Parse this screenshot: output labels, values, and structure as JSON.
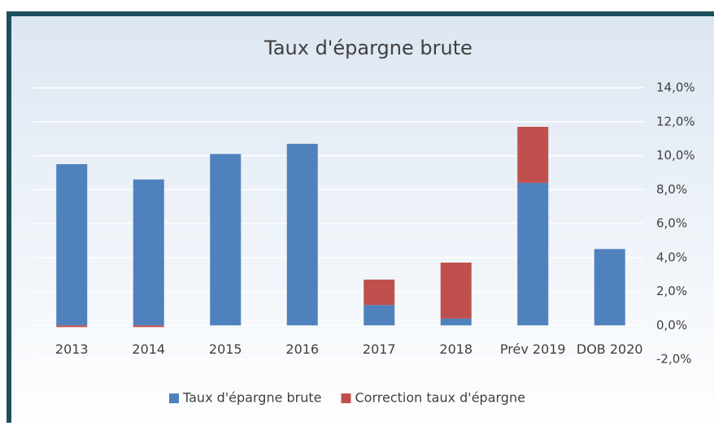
{
  "chart_data": {
    "type": "bar",
    "stacked": true,
    "title": "Taux d'épargne brute",
    "categories": [
      "2013",
      "2014",
      "2015",
      "2016",
      "2017",
      "2018",
      "Prév 2019",
      "DOB 2020"
    ],
    "series": [
      {
        "name": "Taux d'épargne brute",
        "color": "#4f81bd",
        "values": [
          9.5,
          8.6,
          10.1,
          10.7,
          1.2,
          0.4,
          8.4,
          4.5
        ]
      },
      {
        "name": "Correction taux d'épargne",
        "color": "#c0504d",
        "values": [
          -0.1,
          -0.1,
          0,
          0,
          1.5,
          3.3,
          3.3,
          0
        ]
      }
    ],
    "ylim": [
      -2,
      14
    ],
    "yticks": [
      {
        "value": -2,
        "label": "-2,0%"
      },
      {
        "value": 0,
        "label": "0,0%"
      },
      {
        "value": 2,
        "label": "2,0%"
      },
      {
        "value": 4,
        "label": "4,0%"
      },
      {
        "value": 6,
        "label": "6,0%"
      },
      {
        "value": 8,
        "label": "8,0%"
      },
      {
        "value": 10,
        "label": "10,0%"
      },
      {
        "value": 12,
        "label": "12,0%"
      },
      {
        "value": 14,
        "label": "14,0%"
      }
    ],
    "grid": true,
    "y_axis_side": "right",
    "legend": "bottom"
  }
}
